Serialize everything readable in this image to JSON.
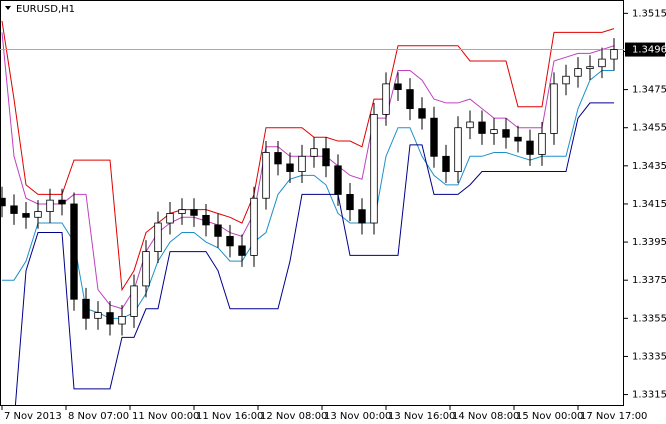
{
  "chart_data": {
    "type": "candlestick",
    "title": "EURUSD,H1",
    "x": [
      0,
      3,
      6,
      9,
      12,
      15,
      18,
      21,
      24,
      27,
      30,
      33,
      36,
      39,
      42,
      45,
      48,
      51,
      54,
      57,
      60,
      63,
      66,
      69,
      72,
      75,
      78,
      81,
      84,
      87,
      90,
      93,
      96,
      99,
      102,
      105,
      108,
      111,
      114,
      117,
      120,
      123,
      126,
      129,
      132,
      135,
      138,
      141,
      144,
      147,
      150,
      153
    ],
    "open": [
      1.3418,
      1.3414,
      1.341,
      1.3408,
      1.3411,
      1.3417,
      1.3415,
      1.3365,
      1.3355,
      1.3358,
      1.3352,
      1.3356,
      1.3372,
      1.339,
      1.3405,
      1.341,
      1.3412,
      1.3409,
      1.3404,
      1.3398,
      1.3393,
      1.3388,
      1.3418,
      1.3442,
      1.3436,
      1.3432,
      1.344,
      1.3444,
      1.3435,
      1.342,
      1.3412,
      1.3405,
      1.3462,
      1.3478,
      1.3475,
      1.3465,
      1.346,
      1.344,
      1.3432,
      1.3455,
      1.3458,
      1.3452,
      1.3454,
      1.345,
      1.3448,
      1.3441,
      1.3452,
      1.3478,
      1.3482,
      1.3486,
      1.3487,
      1.3491
    ],
    "high": [
      1.3424,
      1.342,
      1.3416,
      1.3417,
      1.3423,
      1.3423,
      1.3421,
      1.3371,
      1.3364,
      1.3364,
      1.3362,
      1.3378,
      1.3396,
      1.3411,
      1.3416,
      1.3418,
      1.3418,
      1.3415,
      1.341,
      1.3404,
      1.3399,
      1.3424,
      1.3448,
      1.3448,
      1.3442,
      1.3446,
      1.345,
      1.345,
      1.3441,
      1.3426,
      1.3418,
      1.3468,
      1.3484,
      1.3484,
      1.3481,
      1.3471,
      1.3466,
      1.3446,
      1.3461,
      1.3464,
      1.3464,
      1.346,
      1.346,
      1.3456,
      1.3454,
      1.3458,
      1.3484,
      1.3488,
      1.3492,
      1.3493,
      1.3497,
      1.3502
    ],
    "low": [
      1.3408,
      1.3404,
      1.3402,
      1.3402,
      1.3405,
      1.3409,
      1.3359,
      1.3349,
      1.3349,
      1.3346,
      1.3346,
      1.335,
      1.3366,
      1.3384,
      1.3399,
      1.3404,
      1.3403,
      1.3398,
      1.3392,
      1.3387,
      1.3382,
      1.3382,
      1.3412,
      1.343,
      1.3426,
      1.3426,
      1.3434,
      1.3429,
      1.3414,
      1.3406,
      1.3399,
      1.3399,
      1.3456,
      1.3469,
      1.3459,
      1.3454,
      1.3434,
      1.3426,
      1.3426,
      1.3449,
      1.3446,
      1.3446,
      1.3444,
      1.3442,
      1.3435,
      1.3435,
      1.3446,
      1.3472,
      1.3476,
      1.348,
      1.3481,
      1.3485
    ],
    "close": [
      1.3414,
      1.341,
      1.3408,
      1.3411,
      1.3417,
      1.3415,
      1.3365,
      1.3355,
      1.3358,
      1.3352,
      1.3356,
      1.3372,
      1.339,
      1.3405,
      1.341,
      1.3412,
      1.3409,
      1.3404,
      1.3398,
      1.3393,
      1.3388,
      1.3418,
      1.3442,
      1.3436,
      1.3432,
      1.344,
      1.3444,
      1.3435,
      1.342,
      1.3412,
      1.3405,
      1.3462,
      1.3478,
      1.3475,
      1.3465,
      1.346,
      1.344,
      1.3432,
      1.3455,
      1.3458,
      1.3452,
      1.3454,
      1.345,
      1.3448,
      1.3441,
      1.3452,
      1.3478,
      1.3482,
      1.3486,
      1.3487,
      1.3491,
      1.3496
    ],
    "up_color": "#ffffff",
    "down_color": "#000000",
    "series": [
      {
        "color": "#e00000",
        "values": [
          1.3511,
          1.347,
          1.3425,
          1.342,
          1.342,
          1.342,
          1.3438,
          1.3438,
          1.3438,
          1.3438,
          1.337,
          1.338,
          1.34,
          1.3405,
          1.341,
          1.3412,
          1.3412,
          1.3412,
          1.341,
          1.3408,
          1.3405,
          1.342,
          1.3455,
          1.3455,
          1.3455,
          1.3455,
          1.345,
          1.345,
          1.3448,
          1.3448,
          1.3445,
          1.347,
          1.347,
          1.3498,
          1.3498,
          1.3498,
          1.3498,
          1.3498,
          1.3498,
          1.349,
          1.349,
          1.349,
          1.349,
          1.3466,
          1.3466,
          1.3466,
          1.3505,
          1.3505,
          1.3505,
          1.3505,
          1.3505,
          1.3507
        ]
      },
      {
        "color": "#c040c0",
        "values": [
          1.3505,
          1.344,
          1.3418,
          1.3415,
          1.3415,
          1.3415,
          1.342,
          1.342,
          1.337,
          1.3362,
          1.336,
          1.337,
          1.339,
          1.34,
          1.3405,
          1.3408,
          1.3408,
          1.3406,
          1.3404,
          1.34,
          1.3398,
          1.341,
          1.3445,
          1.3445,
          1.344,
          1.344,
          1.344,
          1.344,
          1.3435,
          1.343,
          1.3428,
          1.346,
          1.346,
          1.3485,
          1.3485,
          1.348,
          1.347,
          1.3468,
          1.3468,
          1.347,
          1.3465,
          1.346,
          1.346,
          1.3455,
          1.3455,
          1.3455,
          1.349,
          1.3492,
          1.3494,
          1.3494,
          1.3496,
          1.3498
        ]
      },
      {
        "color": "#1e90c8",
        "values": [
          1.3375,
          1.3375,
          1.3385,
          1.3405,
          1.3405,
          1.3405,
          1.3395,
          1.336,
          1.3358,
          1.3355,
          1.3355,
          1.3358,
          1.3368,
          1.3385,
          1.3395,
          1.34,
          1.34,
          1.3395,
          1.3392,
          1.3385,
          1.3385,
          1.3395,
          1.34,
          1.342,
          1.3428,
          1.343,
          1.343,
          1.3425,
          1.341,
          1.3405,
          1.3405,
          1.3405,
          1.344,
          1.3455,
          1.3455,
          1.344,
          1.343,
          1.3425,
          1.3425,
          1.344,
          1.344,
          1.3442,
          1.3442,
          1.344,
          1.3438,
          1.344,
          1.344,
          1.344,
          1.3465,
          1.348,
          1.3485,
          1.3485
        ]
      },
      {
        "color": "#00008b",
        "values": [
          1.33,
          1.33,
          1.338,
          1.34,
          1.34,
          1.34,
          1.3318,
          1.3318,
          1.3318,
          1.3318,
          1.3345,
          1.3345,
          1.336,
          1.336,
          1.339,
          1.339,
          1.339,
          1.339,
          1.338,
          1.336,
          1.336,
          1.336,
          1.336,
          1.336,
          1.3385,
          1.342,
          1.342,
          1.342,
          1.342,
          1.3388,
          1.3388,
          1.3388,
          1.3388,
          1.3388,
          1.3446,
          1.3446,
          1.342,
          1.342,
          1.342,
          1.3425,
          1.3432,
          1.3432,
          1.3432,
          1.3432,
          1.3432,
          1.3432,
          1.3432,
          1.3432,
          1.346,
          1.3468,
          1.3468,
          1.3468
        ]
      }
    ],
    "current_price": 1.3496,
    "xlim": [
      -0.5,
      155.5
    ],
    "ylim": [
      1.3309,
      1.3522
    ],
    "yticks": [
      1.3515,
      1.3495,
      1.3475,
      1.3455,
      1.3435,
      1.3415,
      1.3395,
      1.3375,
      1.3355,
      1.3335,
      1.3315
    ],
    "xticks": [
      {
        "value": 0,
        "label": "7 Nov 2013"
      },
      {
        "value": 16,
        "label": "8 Nov 07:00"
      },
      {
        "value": 32,
        "label": "11 Nov 00:00"
      },
      {
        "value": 48,
        "label": "11 Nov 16:00"
      },
      {
        "value": 64,
        "label": "12 Nov 08:00"
      },
      {
        "value": 80,
        "label": "13 Nov 00:00"
      },
      {
        "value": 96,
        "label": "13 Nov 16:00"
      },
      {
        "value": 112,
        "label": "14 Nov 08:00"
      },
      {
        "value": 128,
        "label": "15 Nov 00:00"
      },
      {
        "value": 144,
        "label": "17 Nov 17:00"
      }
    ]
  }
}
